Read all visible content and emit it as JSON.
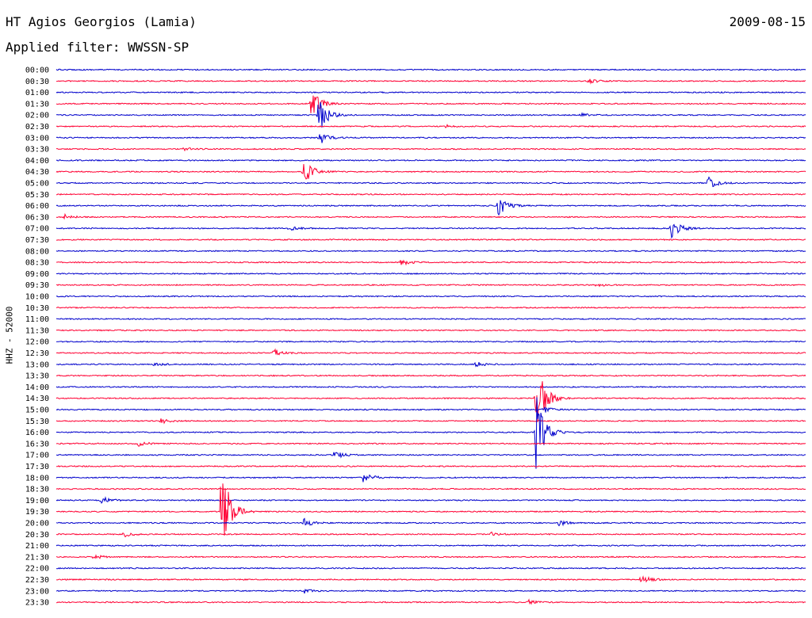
{
  "header": {
    "station": "HT Agios Georgios (Lamia)",
    "date": "2009-08-15",
    "filter_label": "Applied filter: WWSSN-SP"
  },
  "chart_data": {
    "type": "line",
    "title": "HT Agios Georgios (Lamia)",
    "subtitle": "Applied filter: WWSSN-SP",
    "ylabel": "HHZ - 52000",
    "xlabel": "",
    "grid": false,
    "trace_colors": [
      "#0000cc",
      "#ff0033"
    ],
    "rows": [
      "00:00",
      "00:30",
      "01:00",
      "01:30",
      "02:00",
      "02:30",
      "03:00",
      "03:30",
      "04:00",
      "04:30",
      "05:00",
      "05:30",
      "06:00",
      "06:30",
      "07:00",
      "07:30",
      "08:00",
      "08:30",
      "09:00",
      "09:30",
      "10:00",
      "10:30",
      "11:00",
      "11:30",
      "12:00",
      "12:30",
      "13:00",
      "13:30",
      "14:00",
      "14:30",
      "15:00",
      "15:30",
      "16:00",
      "16:30",
      "17:00",
      "17:30",
      "18:00",
      "18:30",
      "19:00",
      "19:30",
      "20:00",
      "20:30",
      "21:00",
      "21:30",
      "22:00",
      "22:30",
      "23:00",
      "23:30"
    ],
    "row_duration_min": 30,
    "events": [
      {
        "row": 1,
        "t": 0.71,
        "amp": 3
      },
      {
        "row": 3,
        "t": 0.34,
        "amp": 22
      },
      {
        "row": 4,
        "t": 0.35,
        "amp": 25
      },
      {
        "row": 4,
        "t": 0.7,
        "amp": 2
      },
      {
        "row": 5,
        "t": 0.52,
        "amp": 2
      },
      {
        "row": 6,
        "t": 0.35,
        "amp": 10
      },
      {
        "row": 7,
        "t": 0.17,
        "amp": 2
      },
      {
        "row": 9,
        "t": 0.33,
        "amp": 18
      },
      {
        "row": 10,
        "t": 0.87,
        "amp": 8
      },
      {
        "row": 12,
        "t": 0.59,
        "amp": 13
      },
      {
        "row": 13,
        "t": 0.01,
        "amp": 4
      },
      {
        "row": 14,
        "t": 0.31,
        "amp": 3
      },
      {
        "row": 14,
        "t": 0.82,
        "amp": 14
      },
      {
        "row": 17,
        "t": 0.46,
        "amp": 4
      },
      {
        "row": 19,
        "t": 0.72,
        "amp": 2
      },
      {
        "row": 25,
        "t": 0.29,
        "amp": 5
      },
      {
        "row": 26,
        "t": 0.13,
        "amp": 3
      },
      {
        "row": 26,
        "t": 0.56,
        "amp": 3
      },
      {
        "row": 29,
        "t": 0.64,
        "amp": 55
      },
      {
        "row": 30,
        "t": 0.65,
        "amp": 4
      },
      {
        "row": 31,
        "t": 0.14,
        "amp": 3
      },
      {
        "row": 32,
        "t": 0.64,
        "amp": 50
      },
      {
        "row": 33,
        "t": 0.11,
        "amp": 3
      },
      {
        "row": 34,
        "t": 0.37,
        "amp": 6
      },
      {
        "row": 36,
        "t": 0.41,
        "amp": 8
      },
      {
        "row": 38,
        "t": 0.06,
        "amp": 5
      },
      {
        "row": 39,
        "t": 0.22,
        "amp": 70
      },
      {
        "row": 40,
        "t": 0.33,
        "amp": 6
      },
      {
        "row": 40,
        "t": 0.67,
        "amp": 4
      },
      {
        "row": 41,
        "t": 0.09,
        "amp": 4
      },
      {
        "row": 41,
        "t": 0.58,
        "amp": 3
      },
      {
        "row": 43,
        "t": 0.05,
        "amp": 3
      },
      {
        "row": 45,
        "t": 0.78,
        "amp": 6
      },
      {
        "row": 46,
        "t": 0.33,
        "amp": 3
      },
      {
        "row": 47,
        "t": 0.63,
        "amp": 3
      }
    ]
  }
}
